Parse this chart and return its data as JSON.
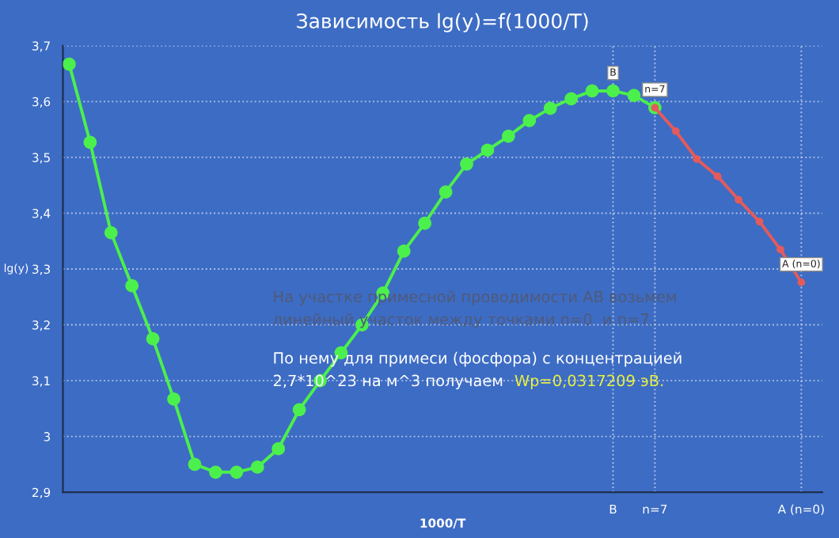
{
  "chart_data": {
    "type": "line",
    "title": "Зависимость lg(y)=f(1000/T)",
    "xlabel": "1000/T",
    "ylabel": "lg(y)",
    "categories": [
      null,
      null,
      null,
      null,
      null,
      null,
      null,
      null,
      null,
      null,
      null,
      null,
      null,
      null,
      null,
      null,
      null,
      null,
      null,
      null,
      null,
      null,
      null,
      null,
      null,
      null,
      "B",
      null,
      "n=7",
      null,
      null,
      null,
      null,
      null,
      null,
      "A (n=0)"
    ],
    "ylim": [
      2.9,
      3.7
    ],
    "yticks": [
      {
        "value": 2.9,
        "label": "2,9"
      },
      {
        "value": 3.0,
        "label": "3"
      },
      {
        "value": 3.1,
        "label": "3,1"
      },
      {
        "value": 3.2,
        "label": "3,2"
      },
      {
        "value": 3.3,
        "label": "3,3"
      },
      {
        "value": 3.4,
        "label": "3,4"
      },
      {
        "value": 3.5,
        "label": "3,5"
      },
      {
        "value": 3.6,
        "label": "3,6"
      },
      {
        "value": 3.7,
        "label": "3,7"
      }
    ],
    "series": [
      {
        "color": "#4cf04c",
        "values": [
          3.667,
          3.527,
          3.365,
          3.27,
          3.175,
          3.067,
          2.95,
          2.936,
          2.936,
          2.945,
          2.978,
          3.048,
          3.1,
          3.15,
          3.2,
          3.257,
          3.332,
          3.382,
          3.438,
          3.488,
          3.513,
          3.538,
          3.566,
          3.588,
          3.605,
          3.619,
          3.619,
          3.611,
          3.589,
          null,
          null,
          null,
          null,
          null,
          null,
          null
        ]
      },
      {
        "color": "#e35b5b",
        "values": [
          null,
          null,
          null,
          null,
          null,
          null,
          null,
          null,
          null,
          null,
          null,
          null,
          null,
          null,
          null,
          null,
          null,
          null,
          null,
          null,
          null,
          null,
          null,
          null,
          null,
          null,
          null,
          null,
          3.589,
          3.547,
          3.497,
          3.466,
          3.424,
          3.385,
          3.335,
          3.276
        ]
      }
    ],
    "annotations": [
      {
        "text": "B",
        "x": "B",
        "y": 3.619
      },
      {
        "text": "n=7",
        "x": "n=7",
        "y": 3.589
      },
      {
        "text": "A (n=0)",
        "x": "A (n=0)",
        "y": 3.276
      },
      "На участке примесной проводимости АВ возьмем\nлинейный участок между точками n=0  и n=7.",
      "По нему для примеси (фосфора) с концентрацией\n2,7*10^23 на м^3 получаем",
      "Wp=0,0317209 эВ."
    ],
    "grid": true,
    "legend": false,
    "marker": "circle",
    "line_style": "solid"
  }
}
